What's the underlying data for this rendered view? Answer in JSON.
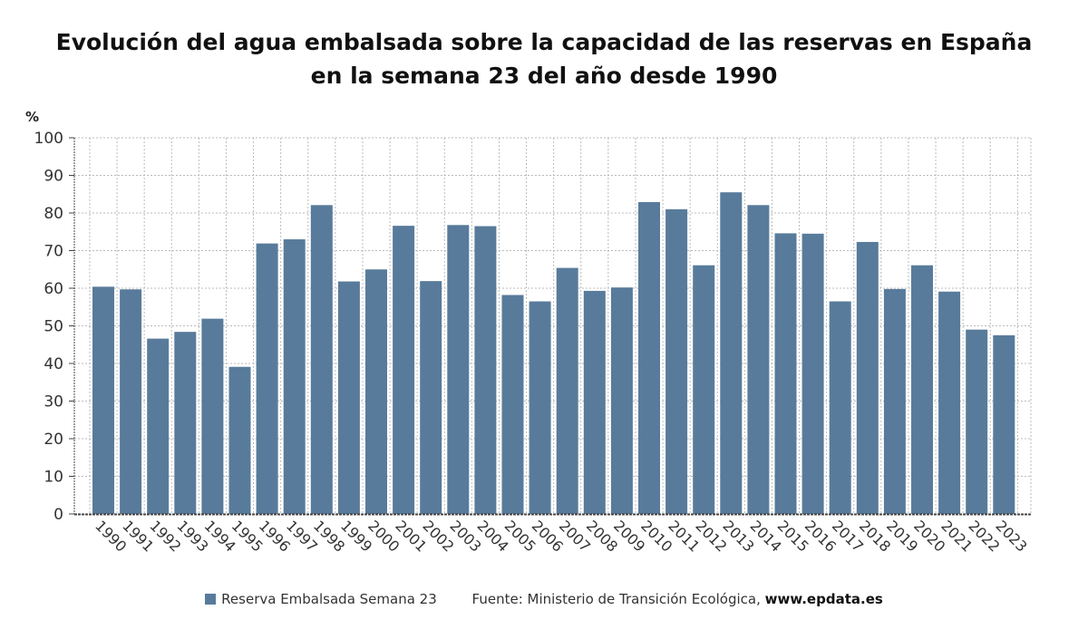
{
  "colors": {
    "bar": "#587b9b",
    "grid": "#bbbbbb",
    "axis": "#444444",
    "text": "#333333"
  },
  "chart_data": {
    "type": "bar",
    "title": "Evolución del agua embalsada sobre la capacidad de las reservas en España en la semana 23 del año desde 1990",
    "ylabel": "%",
    "ylim": [
      0,
      100
    ],
    "yticks": [
      0,
      10,
      20,
      30,
      40,
      50,
      60,
      70,
      80,
      90,
      100
    ],
    "grid": true,
    "legend_position": "bottom",
    "categories": [
      "1990",
      "1991",
      "1992",
      "1993",
      "1994",
      "1995",
      "1996",
      "1997",
      "1998",
      "1999",
      "2000",
      "2001",
      "2002",
      "2003",
      "2004",
      "2005",
      "2006",
      "2007",
      "2008",
      "2009",
      "2010",
      "2011",
      "2012",
      "2013",
      "2014",
      "2015",
      "2016",
      "2017",
      "2018",
      "2019",
      "2020",
      "2021",
      "2022",
      "2023"
    ],
    "series": [
      {
        "name": "Reserva Embalsada Semana 23",
        "values": [
          60.4,
          59.7,
          46.6,
          48.4,
          51.9,
          39.1,
          71.9,
          73.0,
          82.1,
          61.8,
          65.0,
          76.6,
          61.9,
          76.8,
          76.5,
          58.2,
          56.5,
          65.4,
          59.3,
          60.2,
          82.9,
          81.0,
          66.1,
          85.5,
          82.1,
          74.6,
          74.5,
          56.5,
          72.3,
          59.8,
          66.1,
          59.1,
          49.0,
          47.5
        ]
      }
    ]
  },
  "legend": {
    "series_label": "Reserva Embalsada Semana 23",
    "source_prefix": "Fuente: Ministerio de Transición Ecológica, ",
    "source_url": "www.epdata.es"
  }
}
